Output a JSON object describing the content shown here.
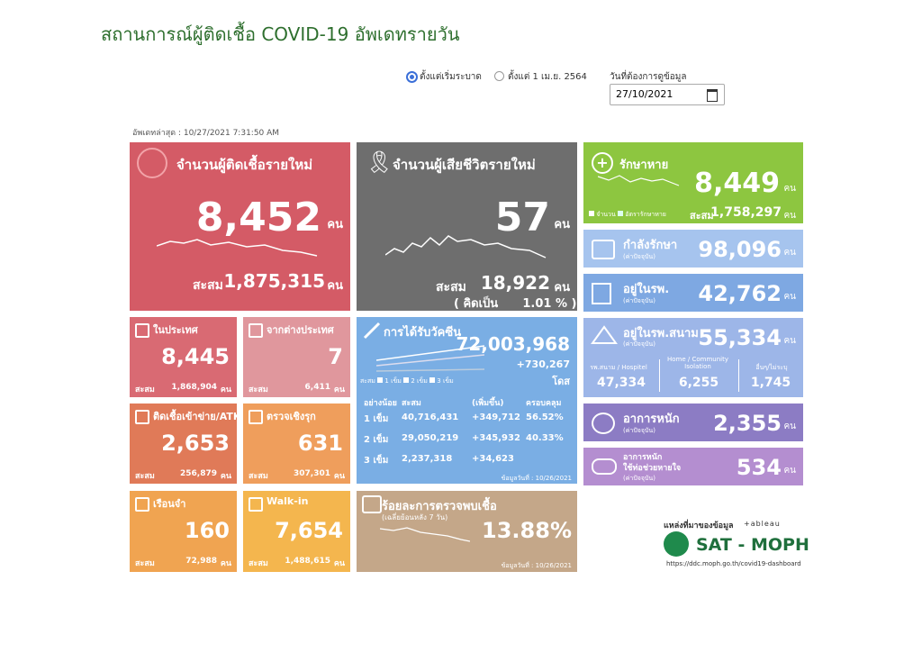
{
  "header": {
    "title": "สถานการณ์ผู้ติดเชื้อ COVID-19 อัพเดทรายวัน",
    "update": "อัพเดทล่าสุด : 10/27/2021 7:31:50 AM"
  },
  "filters": {
    "option_1": "ตั้งแต่เริ่มระบาด",
    "option_2": "ตั้งแต่ 1 เม.ย. 2564",
    "date_label": "วันที่ต้องการดูข้อมูล",
    "date": "27/10/2021"
  },
  "unit": "คน",
  "cum_label": "สะสม",
  "new_cases": {
    "label": "จำนวนผู้ติดเชื้อรายใหม่",
    "value": "8,452",
    "cumulative": "1,875,315"
  },
  "deaths": {
    "label": "จำนวนผู้เสียชีวิตรายใหม่",
    "value": "57",
    "cumulative": "18,922",
    "ratio": "( คิดเป็น      1.01 % )"
  },
  "recovered": {
    "label": "รักษาหาย",
    "value": "8,449",
    "legend_1": "จำนวน",
    "legend_2": "อัตรารักษาหาย",
    "cumulative": "1,758,297"
  },
  "treating": {
    "label": "กำลังรักษา",
    "note": "(ค่าปัจจุบัน)",
    "value": "98,096"
  },
  "hospital": {
    "label": "อยู่ในรพ.",
    "note": "(ค่าปัจจุบัน)",
    "value": "42,762"
  },
  "field_hospital": {
    "label": "อยู่ในรพ.สนาม",
    "note": "(ค่าปัจจุบัน)",
    "value": "55,334",
    "parts": [
      {
        "label": "รพ.สนาม / Hospitel",
        "value": "47,334"
      },
      {
        "label": "Home / Community Isolation",
        "value": "6,255"
      },
      {
        "label": "อื่นๆ/ไม่ระบุ",
        "value": "1,745"
      }
    ]
  },
  "severe": {
    "label": "อาการหนัก",
    "note": "(ค่าปัจจุบัน)",
    "value": "2,355"
  },
  "ventilator": {
    "label": "อาการหนัก",
    "label_2": "ใช้ท่อช่วยหายใจ",
    "note": "(ค่าปัจจุบัน)",
    "value": "534"
  },
  "domestic": {
    "label": "ในประเทศ",
    "value": "8,445",
    "cumulative": "1,868,904"
  },
  "imported": {
    "label": "จากต่างประเทศ",
    "value": "7",
    "cumulative": "6,411"
  },
  "atk": {
    "label": "ติดเชื้อเข้าข่าย/ATK",
    "value": "2,653",
    "cumulative": "256,879"
  },
  "active_search": {
    "label": "ตรวจเชิงรุก",
    "value": "631",
    "cumulative": "307,301"
  },
  "prison": {
    "label": "เรือนจำ",
    "value": "160",
    "cumulative": "72,988"
  },
  "walkin": {
    "label": "Walk-in",
    "value": "7,654",
    "cumulative": "1,488,615"
  },
  "vaccine": {
    "label": "การได้รับวัคซีน",
    "value": "72,003,968",
    "increase": "+730,267",
    "unit": "โดส",
    "legend": [
      "1 เข็ม",
      "2 เข็ม",
      "3 เข็ม"
    ],
    "table_header": [
      "อย่างน้อย",
      "สะสม",
      "(เพิ่มขึ้น)",
      "ครอบคลุม"
    ],
    "rows": [
      [
        "1 เข็ม",
        "40,716,431",
        "+349,712",
        "56.52%"
      ],
      [
        "2 เข็ม",
        "29,050,219",
        "+345,932",
        "40.33%"
      ],
      [
        "3 เข็ม",
        "2,237,318",
        "+34,623",
        null
      ]
    ],
    "as_of": "ข้อมูลวันที่ : 10/26/2021"
  },
  "positivity": {
    "label": "ร้อยละการตรวจพบเชื้อ",
    "note": "(เฉลี่ยย้อนหลัง 7 วัน)",
    "value": "13.88%",
    "as_of": "ข้อมูลวันที่ : 10/26/2021"
  },
  "source": {
    "label": "แหล่งที่มาของข้อมูล",
    "tableau": "+ableau",
    "org": "SAT - MOPH",
    "url": "https://ddc.moph.go.th/covid19-dashboard"
  }
}
